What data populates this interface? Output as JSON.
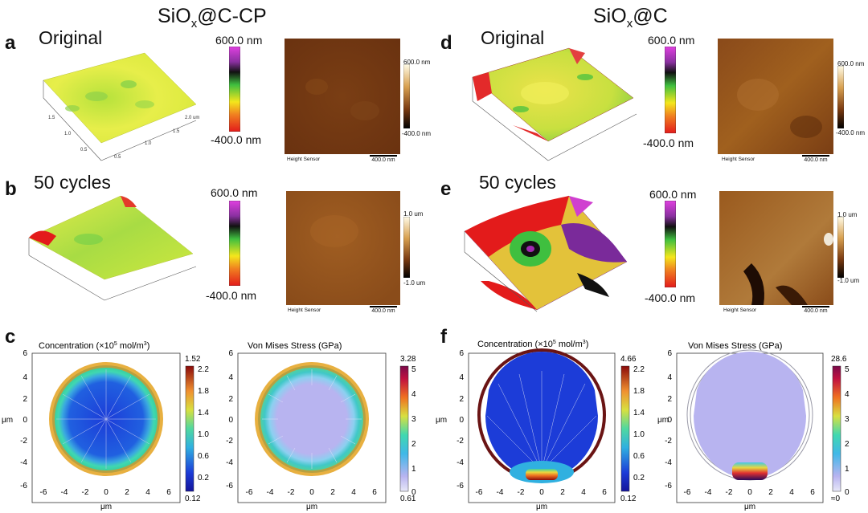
{
  "columns": {
    "left_title_main": "SiO",
    "left_title_sub": "x",
    "left_title_tail": "@C-CP",
    "right_title_main": "SiO",
    "right_title_sub": "x",
    "right_title_tail": "@C"
  },
  "panels": {
    "a": "a",
    "b": "b",
    "c": "c",
    "d": "d",
    "e": "e",
    "f": "f"
  },
  "states": {
    "original": "Original",
    "cycled": "50 cycles"
  },
  "afm": {
    "cb_top": "600.0 nm",
    "cb_bottom": "-400.0 nm",
    "height_sensor": "Height Sensor",
    "scale_bar": "400.0 nm",
    "small_top_a": "600.0 nm",
    "small_bottom_a": "-400.0 nm",
    "small_top_b": "1.0 um",
    "small_bottom_b": "-1.0 um",
    "small_top_d": "600.0 nm",
    "small_bottom_d": "-400.0 nm",
    "small_top_e": "1.0 um",
    "small_bottom_e": "-1.0 um",
    "axis_ticks_a": [
      "1.5",
      "1.0",
      "0.5",
      "0.5",
      "1.0",
      "1.5",
      "2.0 um"
    ],
    "colors": {
      "magenta": "#d040d0",
      "black": "#111111",
      "green": "#3fbf3f",
      "yellow": "#f4e61c",
      "red": "#e31b1b",
      "brown": "#6b3a12"
    }
  },
  "sims": {
    "conc_title": "Concentration (×10",
    "conc_title_sup": "5",
    "conc_title_tail": " mol/m",
    "conc_title_sup2": "3",
    "conc_title_close": ")",
    "stress_title": "Von Mises Stress (GPa)",
    "axis_label": "μm",
    "axis_ticks": [
      "6",
      "4",
      "2",
      "0",
      "-2",
      "-4",
      "-6"
    ],
    "x_ticks": [
      "-6",
      "-4",
      "-2",
      "0",
      "2",
      "4",
      "6"
    ],
    "conc_c": {
      "max": "1.52",
      "min": "0.12",
      "ticks": [
        "2.2",
        "1.8",
        "1.4",
        "1.0",
        "0.6",
        "0.2"
      ]
    },
    "stress_c": {
      "max": "3.28",
      "min": "0.61",
      "ticks": [
        "5",
        "4",
        "3",
        "2",
        "1",
        "0"
      ]
    },
    "conc_f": {
      "max": "4.66",
      "min": "0.12",
      "ticks": [
        "2.2",
        "1.8",
        "1.4",
        "1.0",
        "0.6",
        "0.2"
      ]
    },
    "stress_f": {
      "max": "28.6",
      "min": "≈0",
      "ticks": [
        "5",
        "4",
        "3",
        "2",
        "1",
        "0"
      ]
    }
  }
}
